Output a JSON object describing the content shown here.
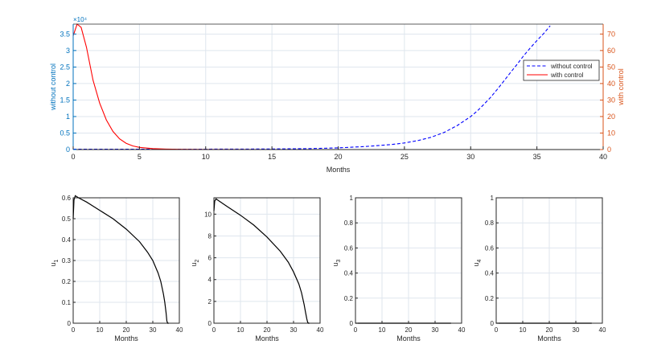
{
  "chart_data": [
    {
      "type": "line",
      "title": "",
      "xlabel": "Months",
      "xlim": [
        0,
        40
      ],
      "xticks": [
        0,
        5,
        10,
        15,
        20,
        25,
        30,
        35,
        40
      ],
      "grid": true,
      "legend_placement": "right",
      "left_axis": {
        "label": "without control",
        "color": "#0072BD",
        "ylim": [
          0,
          38000
        ],
        "ticks": [
          0,
          0.5,
          1,
          1.5,
          2,
          2.5,
          3,
          3.5
        ],
        "tick_scale": 10000,
        "exponent_label": "×10⁴"
      },
      "right_axis": {
        "label": "with control",
        "color": "#D95319",
        "ylim": [
          0,
          76
        ],
        "ticks": [
          0,
          10,
          20,
          30,
          40,
          50,
          60,
          70
        ]
      },
      "series": [
        {
          "name": "without control",
          "axis": "left",
          "color": "#0000FF",
          "style": "dashed",
          "x": [
            0,
            5,
            10,
            15,
            18,
            20,
            22,
            24,
            25,
            26,
            27,
            28,
            29,
            30,
            30.5,
            31,
            31.5,
            32,
            32.5,
            33,
            33.5,
            34,
            34.5,
            35,
            35.5,
            36
          ],
          "y": [
            100,
            100,
            120,
            180,
            300,
            500,
            900,
            1500,
            2000,
            2700,
            3700,
            5200,
            7300,
            10000,
            11700,
            13700,
            15800,
            18200,
            20700,
            23300,
            25800,
            28400,
            30800,
            33000,
            35100,
            37500
          ]
        },
        {
          "name": "with control",
          "axis": "right",
          "color": "#FF0000",
          "style": "solid",
          "x": [
            0,
            0.3,
            0.6,
            1,
            1.5,
            2,
            2.5,
            3,
            3.5,
            4,
            4.5,
            5,
            6,
            7,
            8,
            10,
            15,
            20,
            25,
            30,
            35,
            40
          ],
          "y": [
            69,
            76,
            74,
            62,
            42,
            28,
            18,
            11,
            6.5,
            3.8,
            2.2,
            1.3,
            0.6,
            0.3,
            0.15,
            0.05,
            0,
            0,
            0,
            0,
            0,
            0
          ]
        }
      ]
    },
    {
      "type": "line",
      "title": "",
      "xlabel": "Months",
      "ylabel": "u",
      "ylabel_sub": "1",
      "xlim": [
        0,
        40
      ],
      "ylim": [
        0,
        0.6
      ],
      "xticks": [
        0,
        10,
        20,
        30,
        40
      ],
      "yticks": [
        0,
        0.1,
        0.2,
        0.3,
        0.4,
        0.5,
        0.6
      ],
      "grid": true,
      "series": [
        {
          "color": "#000000",
          "x": [
            0,
            0.3,
            0.8,
            2,
            5,
            10,
            15,
            20,
            25,
            28,
            30,
            32,
            33,
            34,
            34.5,
            35,
            35.3,
            35.6,
            36
          ],
          "y": [
            0.5,
            0.59,
            0.61,
            0.6,
            0.58,
            0.54,
            0.5,
            0.45,
            0.39,
            0.34,
            0.3,
            0.24,
            0.2,
            0.14,
            0.1,
            0.05,
            0.01,
            0,
            0
          ]
        }
      ]
    },
    {
      "type": "line",
      "title": "",
      "xlabel": "Months",
      "ylabel": "u",
      "ylabel_sub": "2",
      "xlim": [
        0,
        40
      ],
      "ylim": [
        0,
        11.5
      ],
      "xticks": [
        0,
        10,
        20,
        30,
        40
      ],
      "yticks": [
        0,
        2,
        4,
        6,
        8,
        10
      ],
      "grid": true,
      "series": [
        {
          "color": "#000000",
          "x": [
            0,
            0.3,
            0.8,
            2,
            5,
            10,
            15,
            20,
            25,
            28,
            30,
            32,
            33,
            34,
            34.5,
            35,
            35.3,
            35.6,
            36
          ],
          "y": [
            10.3,
            11.2,
            11.4,
            11.2,
            10.7,
            9.9,
            9.0,
            7.9,
            6.6,
            5.6,
            4.7,
            3.6,
            2.8,
            1.7,
            1.0,
            0.4,
            0.1,
            0,
            0
          ]
        }
      ]
    },
    {
      "type": "line",
      "title": "",
      "xlabel": "Months",
      "ylabel": "u",
      "ylabel_sub": "3",
      "xlim": [
        0,
        40
      ],
      "ylim": [
        0,
        1
      ],
      "xticks": [
        0,
        10,
        20,
        30,
        40
      ],
      "yticks": [
        0,
        0.2,
        0.4,
        0.6,
        0.8,
        1
      ],
      "grid": true,
      "series": [
        {
          "color": "#000000",
          "x": [
            0,
            36
          ],
          "y": [
            0,
            0
          ]
        }
      ]
    },
    {
      "type": "line",
      "title": "",
      "xlabel": "Months",
      "ylabel": "u",
      "ylabel_sub": "4",
      "xlim": [
        0,
        40
      ],
      "ylim": [
        0,
        1
      ],
      "xticks": [
        0,
        10,
        20,
        30,
        40
      ],
      "yticks": [
        0,
        0.2,
        0.4,
        0.6,
        0.8,
        1
      ],
      "grid": true,
      "series": [
        {
          "color": "#000000",
          "x": [
            0,
            36
          ],
          "y": [
            0,
            0
          ]
        }
      ]
    }
  ]
}
